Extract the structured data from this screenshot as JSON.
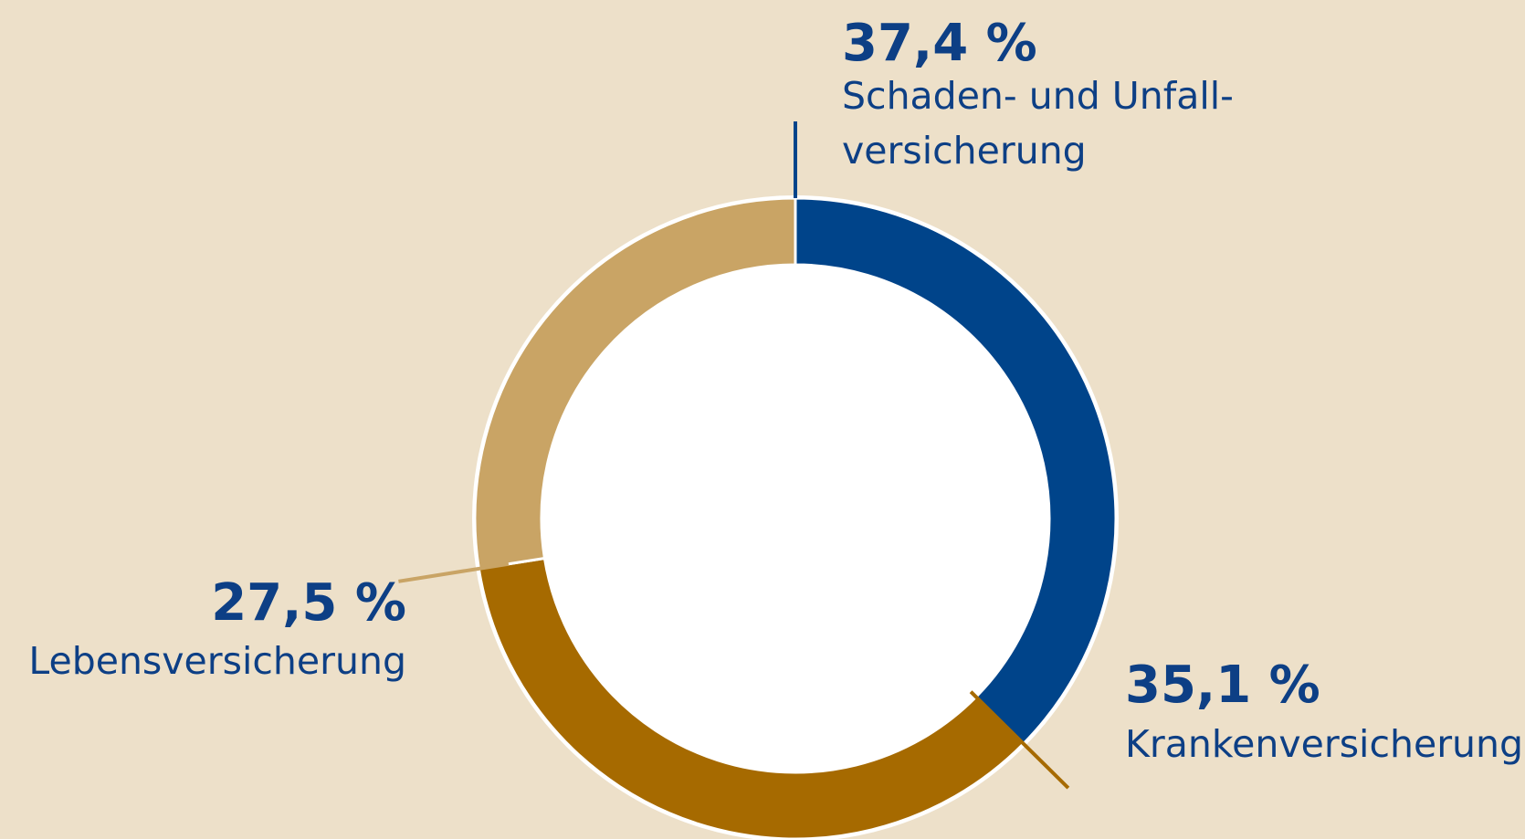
{
  "chart_data": {
    "type": "donut",
    "categories": [
      [
        "Schaden- und Unfall-",
        "versicherung"
      ],
      [
        "Krankenversicherung"
      ],
      [
        "Lebensversicherung"
      ]
    ],
    "values": [
      37.4,
      35.1,
      27.5
    ],
    "value_labels": [
      "37,4 %",
      "35,1 %",
      "27,5 %"
    ],
    "colors": [
      "#00448a",
      "#a66a00",
      "#c9a465"
    ]
  }
}
